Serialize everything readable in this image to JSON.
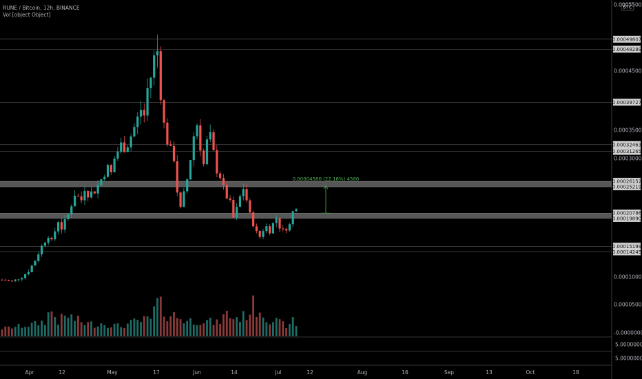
{
  "legend": {
    "title": "RUNE / Bitcoin, 12h, BINANCE",
    "volume": "Vol [object Object]"
  },
  "price_scale": {
    "currency": "BTC",
    "ticks": [
      "0.00055000",
      "0.00045000",
      "0.00035000",
      "0.00030000",
      "0.00010000",
      "0.00005000",
      "-0.00000000"
    ]
  },
  "volume_pane": {
    "ticks": [
      "5.00000000",
      "5.00000000"
    ]
  },
  "colors": {
    "up": "#26a69a",
    "down": "#ef5350",
    "vol_up": "#1f6b66",
    "vol_down": "#8b3a3a",
    "measure": "#4caf50",
    "level_line": "#b0b0b0",
    "zone": "#9e9e9e"
  },
  "chart_data": {
    "type": "candlestick",
    "title": "RUNE / Bitcoin, 12h, BINANCE",
    "y_unit": "BTC",
    "ylim": [
      0,
      0.00055
    ],
    "x_tick_labels": [
      "Apr",
      "12",
      "May",
      "17",
      "Jun",
      "14",
      "Jul",
      "12",
      "Aug",
      "16",
      "Sep",
      "13",
      "Oct",
      "18"
    ],
    "levels": [
      0.00049807,
      0.00048289,
      0.00039727,
      0.00032463,
      0.00031265,
      0.00026152,
      0.00025219,
      0.00020786,
      0.0001989,
      0.00015199,
      0.00014245
    ],
    "zones": [
      [
        0.00025219,
        0.00026152
      ],
      [
        0.0001989,
        0.00020786
      ]
    ],
    "measure_label": "0.00004580 (22.16%) 4580",
    "measure_range": [
      0.00020786,
      0.00025366
    ],
    "price_path": [
      [
        0,
        9.5e-05
      ],
      [
        3,
        9.2e-05
      ],
      [
        6,
        0.0001
      ],
      [
        8,
        0.00011
      ],
      [
        10,
        0.000128
      ],
      [
        12,
        0.000152
      ],
      [
        14,
        0.00017
      ],
      [
        15,
        0.00016
      ],
      [
        17,
        0.000195
      ],
      [
        18,
        0.000182
      ],
      [
        20,
        0.000205
      ],
      [
        22,
        0.00024
      ],
      [
        24,
        0.00023
      ],
      [
        25,
        0.00025
      ],
      [
        26,
        0.00024
      ],
      [
        28,
        0.000245
      ],
      [
        30,
        0.000265
      ],
      [
        32,
        0.000285
      ],
      [
        33,
        0.000275
      ],
      [
        34,
        0.0003
      ],
      [
        36,
        0.000325
      ],
      [
        37,
        0.000318
      ],
      [
        38,
        0.000325
      ],
      [
        40,
        0.000355
      ],
      [
        42,
        0.000385
      ],
      [
        43,
        0.000375
      ],
      [
        44,
        0.00042
      ],
      [
        45,
        0.00044
      ],
      [
        46,
        0.00047
      ],
      [
        47,
        0.00048
      ],
      [
        48,
        0.00041
      ],
      [
        49,
        0.00036
      ],
      [
        50,
        0.00033
      ],
      [
        52,
        0.0003
      ],
      [
        53,
        0.000245
      ],
      [
        54,
        0.000215
      ],
      [
        55,
        0.00024
      ],
      [
        56,
        0.000265
      ],
      [
        57,
        0.0003
      ],
      [
        58,
        0.00034
      ],
      [
        59,
        0.00036
      ],
      [
        60,
        0.00032
      ],
      [
        61,
        0.00029
      ],
      [
        62,
        0.00033
      ],
      [
        63,
        0.00034
      ],
      [
        64,
        0.00031
      ],
      [
        65,
        0.00028
      ],
      [
        66,
        0.00027
      ],
      [
        67,
        0.00025
      ],
      [
        68,
        0.000235
      ],
      [
        69,
        0.000225
      ],
      [
        70,
        0.0002
      ],
      [
        71,
        0.000215
      ],
      [
        72,
        0.000235
      ],
      [
        73,
        0.00025
      ],
      [
        74,
        0.00023
      ],
      [
        75,
        0.000205
      ],
      [
        76,
        0.00019
      ],
      [
        77,
        0.000175
      ],
      [
        78,
        0.000168
      ],
      [
        79,
        0.00018
      ],
      [
        80,
        0.000185
      ],
      [
        81,
        0.000178
      ],
      [
        82,
        0.00019
      ],
      [
        83,
        0.0002
      ],
      [
        84,
        0.000185
      ],
      [
        85,
        0.000178
      ],
      [
        86,
        0.000183
      ],
      [
        87,
        0.000188
      ],
      [
        88,
        0.00021
      ],
      [
        89,
        0.00022
      ]
    ],
    "volume_path": [
      [
        0,
        8e-06
      ],
      [
        5,
        1.2e-05
      ],
      [
        10,
        1.6e-05
      ],
      [
        13,
        2.2e-05
      ],
      [
        14,
        3.4e-05
      ],
      [
        15,
        4e-05
      ],
      [
        17,
        2.2e-05
      ],
      [
        20,
        3.2e-05
      ],
      [
        22,
        2.5e-05
      ],
      [
        25,
        1.8e-05
      ],
      [
        28,
        1.6e-05
      ],
      [
        30,
        1.8e-05
      ],
      [
        33,
        1.5e-05
      ],
      [
        36,
        1.2e-05
      ],
      [
        40,
        2e-05
      ],
      [
        45,
        2.5e-05
      ],
      [
        46,
        4e-05
      ],
      [
        47,
        5.5e-05
      ],
      [
        48,
        4.8e-05
      ],
      [
        50,
        3.6e-05
      ],
      [
        53,
        3e-05
      ],
      [
        56,
        2.2e-05
      ],
      [
        60,
        2.4e-05
      ],
      [
        65,
        1.8e-05
      ],
      [
        68,
        3.5e-05
      ],
      [
        70,
        2.8e-05
      ],
      [
        73,
        3e-05
      ],
      [
        76,
        5e-05
      ],
      [
        78,
        4.5e-05
      ],
      [
        80,
        3e-05
      ],
      [
        84,
        1.8e-05
      ],
      [
        87,
        1.2e-05
      ],
      [
        88,
        2.5e-05
      ],
      [
        89,
        1.5e-05
      ]
    ]
  }
}
